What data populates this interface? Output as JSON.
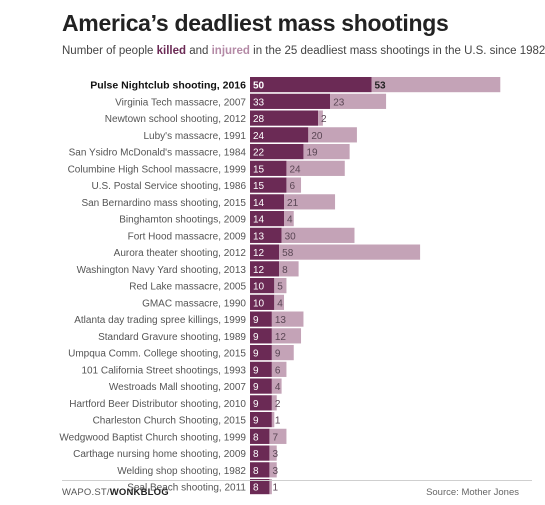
{
  "header": {
    "title": "America’s deadliest mass shootings",
    "subtitle_pre": "Number of people ",
    "subtitle_killed": "killed",
    "subtitle_mid": " and ",
    "subtitle_injured": "injured",
    "subtitle_post": " in the 25 deadliest mass shootings in the U.S. since 1982"
  },
  "footer": {
    "brand_prefix": "WAPO.ST/",
    "brand_name": "WONKBLOG",
    "source": "Source: Mother Jones"
  },
  "colors": {
    "killed": "#6b2a55",
    "injured": "#c4a3b7"
  },
  "chart_data": {
    "type": "bar",
    "orientation": "horizontal",
    "stacked": true,
    "highlight_index": 0,
    "categories": [
      "Pulse Nightclub shooting, 2016",
      "Virginia Tech massacre, 2007",
      "Newtown school shooting, 2012",
      "Luby's massacre, 1991",
      "San Ysidro McDonald's massacre, 1984",
      "Columbine High School massacre, 1999",
      "U.S. Postal Service shooting, 1986",
      "San Bernardino mass shooting, 2015",
      "Binghamton shootings, 2009",
      "Fort Hood massacre, 2009",
      "Aurora theater shooting, 2012",
      "Washington Navy Yard shooting, 2013",
      "Red Lake massacre, 2005",
      "GMAC massacre, 1990",
      "Atlanta day trading spree killings, 1999",
      "Standard Gravure shooting, 1989",
      "Umpqua Comm. College shooting, 2015",
      "101 California Street shootings, 1993",
      "Westroads Mall shooting, 2007",
      "Hartford Beer Distributor shooting, 2010",
      "Charleston Church Shooting, 2015",
      "Wedgwood Baptist Church shooting, 1999",
      "Carthage nursing home shooting, 2009",
      "Welding shop shooting, 1982",
      "Seal Beach shooting, 2011"
    ],
    "series": [
      {
        "name": "killed",
        "values": [
          50,
          33,
          28,
          24,
          22,
          15,
          15,
          14,
          14,
          13,
          12,
          12,
          10,
          10,
          9,
          9,
          9,
          9,
          9,
          9,
          9,
          8,
          8,
          8,
          8
        ]
      },
      {
        "name": "injured",
        "values": [
          53,
          23,
          2,
          20,
          19,
          24,
          6,
          21,
          4,
          30,
          58,
          8,
          5,
          4,
          13,
          12,
          9,
          6,
          4,
          2,
          1,
          7,
          3,
          3,
          1
        ]
      }
    ]
  }
}
